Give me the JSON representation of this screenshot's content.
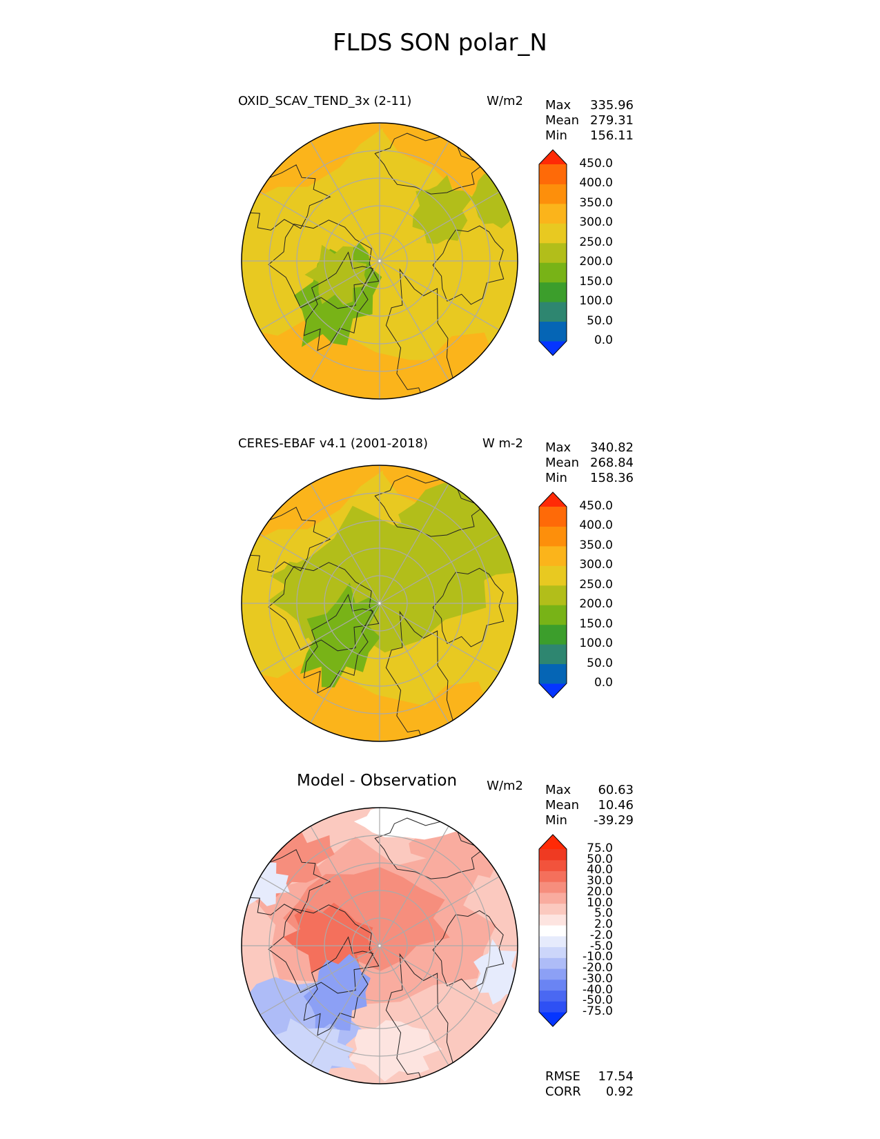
{
  "figure_title": "FLDS SON polar_N",
  "panels": [
    {
      "title": "OXID_SCAV_TEND_3x (2-11)",
      "units": "W/m2",
      "stats": {
        "max_label": "Max",
        "max": "335.96",
        "mean_label": "Mean",
        "mean": "279.31",
        "min_label": "Min",
        "min": "156.11"
      }
    },
    {
      "title": "CERES-EBAF v4.1 (2001-2018)",
      "units": "W m-2",
      "stats": {
        "max_label": "Max",
        "max": "340.82",
        "mean_label": "Mean",
        "mean": "268.84",
        "min_label": "Min",
        "min": "158.36"
      }
    },
    {
      "title": "Model - Observation",
      "units": "W/m2",
      "stats": {
        "max_label": "Max",
        "max": "60.63",
        "mean_label": "Mean",
        "mean": "10.46",
        "min_label": "Min",
        "min": "-39.29"
      },
      "extra": {
        "rmse_label": "RMSE",
        "rmse": "17.54",
        "corr_label": "CORR",
        "corr": "0.92"
      }
    }
  ],
  "chart_data": [
    {
      "type": "heatmap",
      "projection": "north polar stereographic",
      "title": "OXID_SCAV_TEND_3x (2-11)",
      "units": "W/m2",
      "colorbar_levels": [
        0,
        50,
        100,
        150,
        200,
        250,
        300,
        350,
        400,
        450
      ],
      "colorbar_tick_labels": [
        "450.0",
        "400.0",
        "350.0",
        "300.0",
        "250.0",
        "200.0",
        "150.0",
        "100.0",
        "50.0",
        "0.0"
      ],
      "colorbar_colors": [
        "#0535ff",
        "#0565b5",
        "#2e8670",
        "#3c9e2c",
        "#78b317",
        "#b2be1a",
        "#e8c921",
        "#fbb41b",
        "#fd8f0b",
        "#fe6a08",
        "#ff2a06"
      ],
      "stats": {
        "max": 335.96,
        "mean": 279.31,
        "min": 156.11
      }
    },
    {
      "type": "heatmap",
      "projection": "north polar stereographic",
      "title": "CERES-EBAF v4.1 (2001-2018)",
      "units": "W m-2",
      "colorbar_levels": [
        0,
        50,
        100,
        150,
        200,
        250,
        300,
        350,
        400,
        450
      ],
      "colorbar_tick_labels": [
        "450.0",
        "400.0",
        "350.0",
        "300.0",
        "250.0",
        "200.0",
        "150.0",
        "100.0",
        "50.0",
        "0.0"
      ],
      "colorbar_colors": [
        "#0535ff",
        "#0565b5",
        "#2e8670",
        "#3c9e2c",
        "#78b317",
        "#b2be1a",
        "#e8c921",
        "#fbb41b",
        "#fd8f0b",
        "#fe6a08",
        "#ff2a06"
      ],
      "stats": {
        "max": 340.82,
        "mean": 268.84,
        "min": 158.36
      }
    },
    {
      "type": "heatmap",
      "projection": "north polar stereographic",
      "title": "Model - Observation",
      "units": "W/m2",
      "colorbar_levels": [
        -75,
        -50,
        -40,
        -30,
        -20,
        -10,
        -5,
        -2,
        2,
        5,
        10,
        20,
        30,
        40,
        50,
        75
      ],
      "colorbar_tick_labels": [
        "75.0",
        "50.0",
        "40.0",
        "30.0",
        "20.0",
        "10.0",
        "5.0",
        "2.0",
        "-2.0",
        "-5.0",
        "-10.0",
        "-20.0",
        "-30.0",
        "-40.0",
        "-50.0",
        "-75.0"
      ],
      "colorbar_colors": [
        "#0535ff",
        "#2e50f4",
        "#4a68f2",
        "#6a84f3",
        "#8ca0f5",
        "#aebcf7",
        "#ccd6fa",
        "#e6ebfc",
        "#ffffff",
        "#fde4e0",
        "#fbc9bf",
        "#f9ac9f",
        "#f68e7d",
        "#f4705c",
        "#f2533c",
        "#ef3a22",
        "#ff2a06"
      ],
      "stats": {
        "max": 60.63,
        "mean": 10.46,
        "min": -39.29
      },
      "rmse": 17.54,
      "corr": 0.92
    }
  ]
}
